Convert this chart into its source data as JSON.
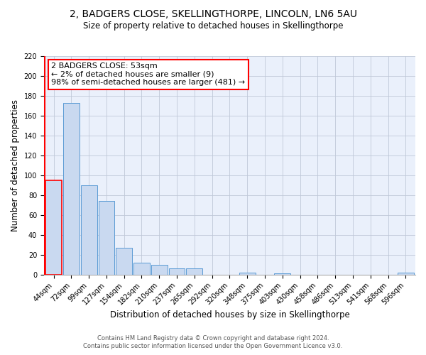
{
  "title1": "2, BADGERS CLOSE, SKELLINGTHORPE, LINCOLN, LN6 5AU",
  "title2": "Size of property relative to detached houses in Skellingthorpe",
  "xlabel": "Distribution of detached houses by size in Skellingthorpe",
  "ylabel": "Number of detached properties",
  "categories": [
    "44sqm",
    "72sqm",
    "99sqm",
    "127sqm",
    "154sqm",
    "182sqm",
    "210sqm",
    "237sqm",
    "265sqm",
    "292sqm",
    "320sqm",
    "348sqm",
    "375sqm",
    "403sqm",
    "430sqm",
    "458sqm",
    "486sqm",
    "513sqm",
    "541sqm",
    "568sqm",
    "596sqm"
  ],
  "values": [
    95,
    173,
    90,
    74,
    27,
    12,
    10,
    6,
    6,
    0,
    0,
    2,
    0,
    1,
    0,
    0,
    0,
    0,
    0,
    0,
    2
  ],
  "bar_color": "#c9d9f0",
  "bar_edge_color": "#5b9bd5",
  "highlight_bar_index": 0,
  "highlight_edge_color": "#ff0000",
  "vline_color": "#ff0000",
  "annotation_text": "2 BADGERS CLOSE: 53sqm\n← 2% of detached houses are smaller (9)\n98% of semi-detached houses are larger (481) →",
  "annotation_box_color": "#ffffff",
  "annotation_box_edge": "#ff0000",
  "ylim": [
    0,
    220
  ],
  "yticks": [
    0,
    20,
    40,
    60,
    80,
    100,
    120,
    140,
    160,
    180,
    200,
    220
  ],
  "footnote1": "Contains HM Land Registry data © Crown copyright and database right 2024.",
  "footnote2": "Contains public sector information licensed under the Open Government Licence v3.0.",
  "plot_bg_color": "#eaf0fb",
  "title1_fontsize": 10,
  "title2_fontsize": 8.5,
  "tick_fontsize": 7,
  "label_fontsize": 8.5,
  "annotation_fontsize": 8,
  "footnote_fontsize": 6
}
